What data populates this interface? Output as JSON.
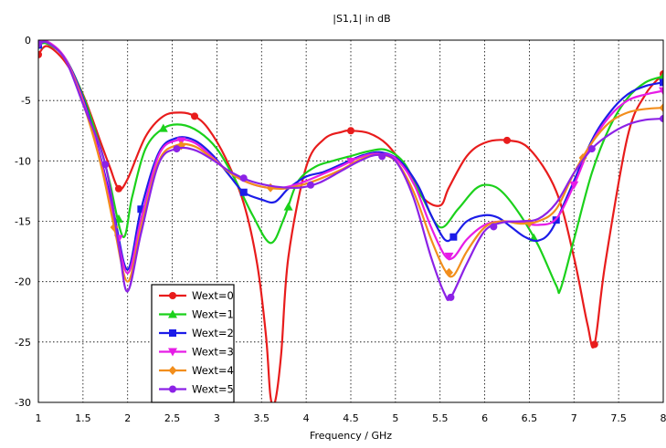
{
  "chart_data": {
    "type": "line",
    "title": "|S1,1| in dB",
    "xlabel": "Frequency / GHz",
    "ylabel": "",
    "xlim": [
      1,
      8
    ],
    "ylim": [
      -30,
      0
    ],
    "xticks": [
      "1",
      "1.5",
      "2",
      "2.5",
      "3",
      "3.5",
      "4",
      "4.5",
      "5",
      "5.5",
      "6",
      "6.5",
      "7",
      "7.5",
      "8"
    ],
    "yticks": [
      "0",
      "-5",
      "-10",
      "-15",
      "-20",
      "-25",
      "-30"
    ],
    "grid": true,
    "legend_position": "bottom-left",
    "series": [
      {
        "name": "Wext=0",
        "color": "#e81c1c",
        "marker": "circle",
        "x": [
          1,
          1.1,
          1.3,
          1.5,
          1.7,
          1.8,
          1.9,
          2.0,
          2.2,
          2.4,
          2.6,
          2.75,
          2.9,
          3.1,
          3.3,
          3.45,
          3.55,
          3.6,
          3.65,
          3.72,
          3.8,
          4.0,
          4.2,
          4.4,
          4.5,
          4.7,
          4.9,
          5.1,
          5.3,
          5.5,
          5.6,
          5.8,
          6.0,
          6.25,
          6.5,
          6.8,
          7.0,
          7.15,
          7.23,
          7.35,
          7.6,
          7.8,
          8
        ],
        "y": [
          -1.2,
          -0.5,
          -1.8,
          -4.5,
          -8.5,
          -10.5,
          -12.3,
          -11.5,
          -8.0,
          -6.3,
          -6.0,
          -6.3,
          -7.3,
          -9.8,
          -13.5,
          -18.5,
          -24.5,
          -29.5,
          -30,
          -26,
          -18,
          -10.5,
          -8.2,
          -7.6,
          -7.5,
          -7.7,
          -8.6,
          -10.5,
          -13.0,
          -13.7,
          -12.2,
          -9.6,
          -8.5,
          -8.3,
          -9.0,
          -12.5,
          -18.0,
          -23.5,
          -25.2,
          -18.5,
          -8.0,
          -4.5,
          -2.8
        ],
        "marker_x": [
          1,
          1.9,
          2.75,
          4.5,
          6.25,
          7.23,
          8
        ]
      },
      {
        "name": "Wext=1",
        "color": "#1bd11b",
        "marker": "triangle-up",
        "x": [
          1,
          1.1,
          1.3,
          1.5,
          1.7,
          1.8,
          1.95,
          2.05,
          2.2,
          2.4,
          2.6,
          2.8,
          3.0,
          3.2,
          3.4,
          3.6,
          3.75,
          3.9,
          4.1,
          4.3,
          4.5,
          4.7,
          4.9,
          5.1,
          5.3,
          5.5,
          5.7,
          5.9,
          6.05,
          6.2,
          6.4,
          6.6,
          6.8,
          6.85,
          7.0,
          7.2,
          7.4,
          7.6,
          7.8,
          8
        ],
        "y": [
          -0.4,
          -0.3,
          -1.5,
          -4.6,
          -9.0,
          -11.8,
          -16.3,
          -13.0,
          -9.0,
          -7.3,
          -7.0,
          -7.6,
          -9.0,
          -11.5,
          -14.5,
          -16.8,
          -14.8,
          -11.8,
          -10.5,
          -10.0,
          -9.6,
          -9.2,
          -9.1,
          -10.2,
          -13.0,
          -15.5,
          -14.0,
          -12.3,
          -12.0,
          -12.6,
          -14.5,
          -17.0,
          -20.3,
          -20.6,
          -16.5,
          -11.0,
          -7.2,
          -4.8,
          -3.5,
          -3.0
        ],
        "marker_x": [
          1,
          1.9,
          2.4,
          3.8,
          6.55,
          8
        ]
      },
      {
        "name": "Wext=2",
        "color": "#1c1ce8",
        "marker": "square",
        "x": [
          1,
          1.1,
          1.3,
          1.5,
          1.7,
          1.85,
          2.0,
          2.15,
          2.35,
          2.55,
          2.75,
          2.95,
          3.15,
          3.3,
          3.5,
          3.65,
          3.8,
          4.0,
          4.2,
          4.45,
          4.65,
          4.85,
          5.05,
          5.25,
          5.4,
          5.55,
          5.65,
          5.8,
          6.0,
          6.15,
          6.3,
          6.45,
          6.6,
          6.75,
          6.95,
          7.2,
          7.4,
          7.6,
          7.8,
          8
        ],
        "y": [
          -0.4,
          -0.2,
          -1.5,
          -4.8,
          -9.8,
          -14.5,
          -19.0,
          -14.0,
          -9.3,
          -8.1,
          -8.3,
          -9.5,
          -11.3,
          -12.6,
          -13.2,
          -13.4,
          -12.3,
          -11.3,
          -10.9,
          -10.1,
          -9.5,
          -9.3,
          -10.0,
          -12.0,
          -14.5,
          -16.5,
          -16.3,
          -15.0,
          -14.5,
          -14.7,
          -15.5,
          -16.3,
          -16.6,
          -15.7,
          -12.5,
          -8.3,
          -6.0,
          -4.5,
          -3.8,
          -3.5
        ],
        "marker_x": [
          1,
          2.15,
          3.3,
          5.65,
          6.8,
          8
        ]
      },
      {
        "name": "Wext=3",
        "color": "#e61ce6",
        "marker": "triangle-down",
        "x": [
          1,
          1.1,
          1.3,
          1.5,
          1.7,
          1.85,
          2.0,
          2.15,
          2.35,
          2.55,
          2.75,
          2.95,
          3.15,
          3.35,
          3.55,
          3.75,
          3.95,
          4.15,
          4.4,
          4.6,
          4.8,
          5.0,
          5.2,
          5.4,
          5.55,
          5.65,
          5.8,
          6.0,
          6.2,
          6.4,
          6.6,
          6.8,
          7.0,
          7.2,
          7.4,
          7.6,
          7.8,
          8
        ],
        "y": [
          -0.2,
          -0.1,
          -1.5,
          -5.0,
          -10.0,
          -15.0,
          -19.3,
          -14.8,
          -9.5,
          -8.3,
          -8.5,
          -9.7,
          -11.0,
          -11.8,
          -12.2,
          -12.2,
          -11.8,
          -11.2,
          -10.4,
          -9.7,
          -9.4,
          -9.8,
          -11.8,
          -15.5,
          -17.8,
          -18.0,
          -16.5,
          -15.3,
          -15.0,
          -15.1,
          -15.3,
          -14.8,
          -12.0,
          -8.5,
          -6.3,
          -5.0,
          -4.5,
          -4.2
        ],
        "marker_x": [
          1,
          1.9,
          2.6,
          4.5,
          5.6,
          6.5,
          7.0,
          8
        ]
      },
      {
        "name": "Wext=4",
        "color": "#f28e1c",
        "marker": "diamond",
        "x": [
          1,
          1.1,
          1.3,
          1.5,
          1.7,
          1.85,
          2.0,
          2.15,
          2.35,
          2.55,
          2.75,
          2.95,
          3.15,
          3.35,
          3.55,
          3.75,
          3.95,
          4.15,
          4.4,
          4.6,
          4.8,
          5.0,
          5.2,
          5.4,
          5.55,
          5.65,
          5.8,
          6.0,
          6.2,
          6.4,
          6.6,
          6.8,
          7.0,
          7.2,
          7.4,
          7.6,
          7.8,
          8
        ],
        "y": [
          -0.3,
          -0.2,
          -1.6,
          -5.2,
          -10.3,
          -15.5,
          -20.0,
          -15.5,
          -10.0,
          -8.7,
          -8.8,
          -9.8,
          -11.0,
          -11.8,
          -12.2,
          -12.3,
          -12.0,
          -11.5,
          -10.7,
          -9.9,
          -9.5,
          -10.0,
          -12.5,
          -16.5,
          -19.0,
          -19.5,
          -17.5,
          -15.5,
          -15.0,
          -15.2,
          -15.0,
          -14.0,
          -11.0,
          -8.5,
          -6.8,
          -6.0,
          -5.7,
          -5.6
        ],
        "marker_x": [
          1,
          1.85,
          2.6,
          3.6,
          5.6,
          6.5,
          7.1,
          8
        ]
      },
      {
        "name": "Wext=5",
        "color": "#8c22e6",
        "marker": "circle",
        "x": [
          1,
          1.1,
          1.3,
          1.5,
          1.75,
          1.9,
          2.0,
          2.15,
          2.35,
          2.55,
          2.75,
          2.95,
          3.15,
          3.35,
          3.55,
          3.75,
          3.95,
          4.15,
          4.4,
          4.6,
          4.8,
          5.0,
          5.2,
          5.4,
          5.55,
          5.62,
          5.8,
          6.0,
          6.2,
          6.4,
          6.6,
          6.8,
          7.0,
          7.2,
          7.4,
          7.6,
          7.8,
          8
        ],
        "y": [
          -0.3,
          -0.2,
          -1.6,
          -5.3,
          -10.3,
          -17.0,
          -20.8,
          -16.0,
          -10.2,
          -9.0,
          -9.1,
          -9.9,
          -10.9,
          -11.6,
          -12.0,
          -12.2,
          -12.2,
          -11.8,
          -10.8,
          -10.0,
          -9.5,
          -10.0,
          -13.0,
          -18.0,
          -21.0,
          -21.3,
          -18.5,
          -15.8,
          -15.1,
          -15.0,
          -14.8,
          -13.5,
          -11.0,
          -9.0,
          -7.8,
          -7.0,
          -6.6,
          -6.5
        ],
        "marker_x": [
          1,
          1.75,
          2.55,
          3.3,
          4.05,
          4.85,
          5.62,
          6.1,
          7.2,
          8
        ]
      }
    ]
  }
}
